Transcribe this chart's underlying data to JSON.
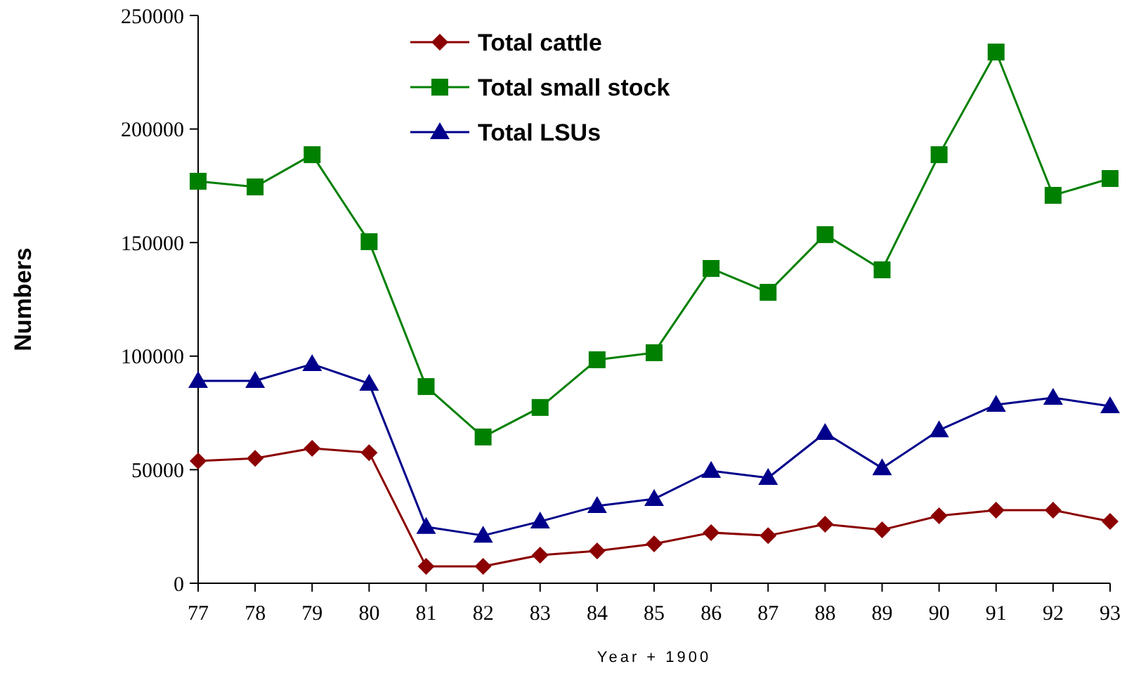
{
  "chart_data": {
    "type": "line",
    "xlabel": "Year + 1900",
    "ylabel": "Numbers",
    "x": [
      77,
      78,
      79,
      80,
      81,
      82,
      83,
      84,
      85,
      86,
      87,
      88,
      89,
      90,
      91,
      92,
      93
    ],
    "xlim": [
      77,
      93
    ],
    "xticks": [
      77,
      78,
      79,
      80,
      81,
      82,
      83,
      84,
      85,
      86,
      87,
      88,
      89,
      90,
      91,
      92,
      93
    ],
    "ylim": [
      0,
      250000
    ],
    "yticks": [
      0,
      50000,
      100000,
      150000,
      200000,
      250000
    ],
    "grid": false,
    "legend": "top",
    "series": [
      {
        "name": "Total cattle",
        "color": "#8b0000",
        "marker": "diamond",
        "values": [
          53800,
          55000,
          59400,
          57500,
          7400,
          7400,
          12400,
          14200,
          17300,
          22300,
          21000,
          26000,
          23500,
          29700,
          32200,
          32200,
          27200
        ]
      },
      {
        "name": "Total small stock",
        "color": "#008000",
        "marker": "square",
        "values": [
          177000,
          174500,
          188700,
          150400,
          86600,
          64400,
          77400,
          98400,
          101500,
          138600,
          128100,
          153500,
          138000,
          188700,
          233900,
          170800,
          178200
        ]
      },
      {
        "name": "Total LSUs",
        "color": "#00008b",
        "marker": "triangle",
        "values": [
          89100,
          89100,
          96500,
          87900,
          24800,
          21000,
          27200,
          34000,
          37100,
          49500,
          46400,
          66200,
          50700,
          67400,
          78600,
          81700,
          78000
        ]
      }
    ]
  }
}
